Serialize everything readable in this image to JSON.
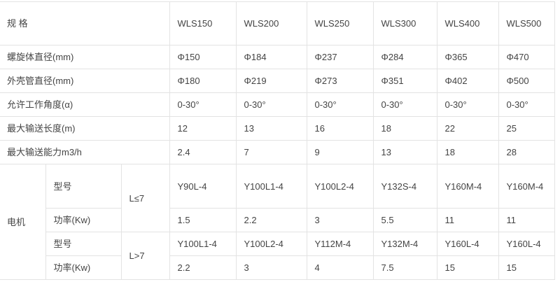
{
  "header": {
    "label": "规 格",
    "models": [
      "WLS150",
      "WLS200",
      "WLS250",
      "WLS300",
      "WLS400",
      "WLS500"
    ]
  },
  "rows": [
    {
      "label": "螺旋体直径(mm)",
      "values": [
        "Φ150",
        "Φ184",
        "Φ237",
        "Φ284",
        "Φ365",
        "Φ470"
      ]
    },
    {
      "label": "外壳管直径(mm)",
      "values": [
        "Φ180",
        "Φ219",
        "Φ273",
        "Φ351",
        "Φ402",
        "Φ500"
      ]
    },
    {
      "label": "允许工作角度(α)",
      "values": [
        "0-30°",
        "0-30°",
        "0-30°",
        "0-30°",
        "0-30°",
        "0-30°"
      ]
    },
    {
      "label": "最大输送长度(m)",
      "values": [
        "12",
        "13",
        "16",
        "18",
        "22",
        "25"
      ]
    },
    {
      "label": "最大输送能力m3/h",
      "values": [
        "2.4",
        "7",
        "9",
        "13",
        "18",
        "28"
      ]
    }
  ],
  "motor": {
    "label": "电机",
    "groups": [
      {
        "condition": "L≤7",
        "model_label": "型号",
        "models": [
          "Y90L-4",
          "Y100L1-4",
          "Y100L2-4",
          "Y132S-4",
          "Y160M-4",
          "Y160M-4"
        ],
        "power_label": "功率(Kw)",
        "powers": [
          "1.5",
          "2.2",
          "3",
          "5.5",
          "11",
          "11"
        ]
      },
      {
        "condition": "L>7",
        "model_label": "型号",
        "models": [
          "Y100L1-4",
          "Y100L2-4",
          "Y112M-4",
          "Y132M-4",
          "Y160L-4",
          "Y160L-4"
        ],
        "power_label": "功率(Kw)",
        "powers": [
          "2.2",
          "3",
          "4",
          "7.5",
          "15",
          "15"
        ]
      }
    ]
  }
}
